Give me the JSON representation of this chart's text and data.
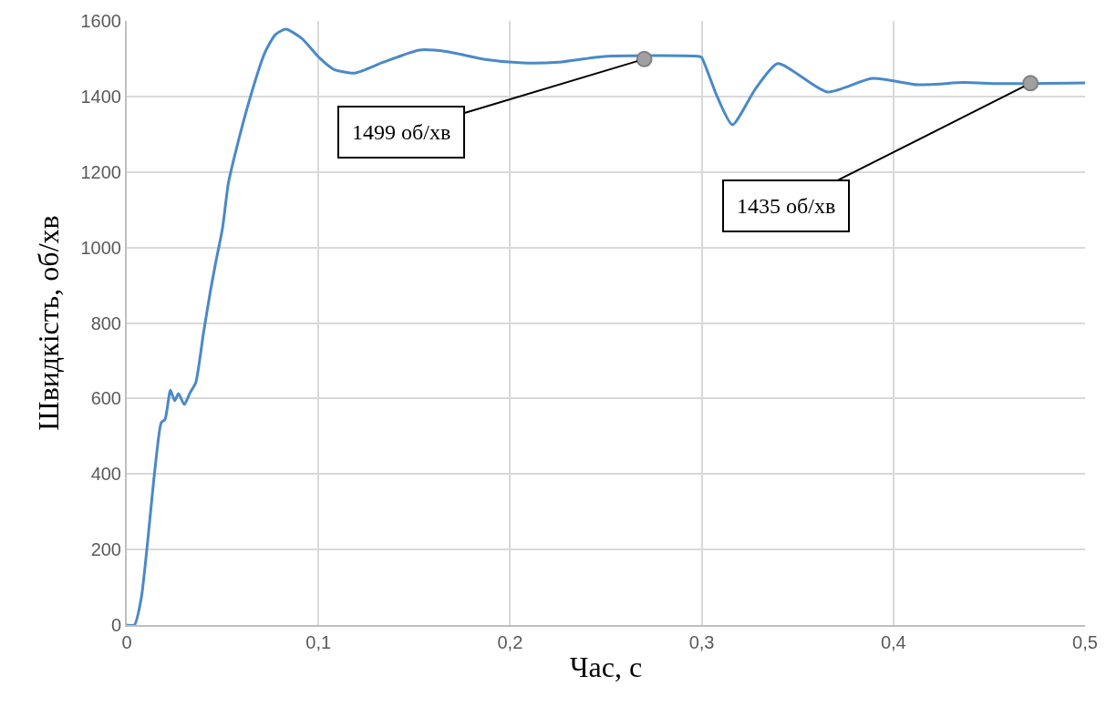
{
  "chart_data": {
    "type": "line",
    "xlabel": "Час, с",
    "ylabel": "Швидкість, об/хв",
    "x": [
      0,
      0.004,
      0.0076,
      0.0148,
      0.018,
      0.02,
      0.0228,
      0.025,
      0.027,
      0.03,
      0.033,
      0.036,
      0.04,
      0.0435,
      0.0466,
      0.05,
      0.053,
      0.057,
      0.0637,
      0.072,
      0.0776,
      0.083,
      0.0913,
      0.1,
      0.108,
      0.119,
      0.134,
      0.1527,
      0.168,
      0.187,
      0.2065,
      0.2255,
      0.249,
      0.2988,
      0.3,
      0.308,
      0.316,
      0.328,
      0.3397,
      0.3654,
      0.389,
      0.413,
      0.4367,
      0.455,
      0.5
    ],
    "series": [
      {
        "color": "#4a89c8",
        "values": [
          0,
          0,
          72,
          417,
          536,
          545,
          622,
          594,
          613,
          584,
          615,
          642,
          772,
          880,
          965,
          1052,
          1170,
          1257,
          1385,
          1515,
          1564,
          1578,
          1554,
          1505,
          1472,
          1462,
          1491,
          1523,
          1518,
          1498,
          1489,
          1491,
          1506,
          1506,
          1503,
          1400,
          1325,
          1420,
          1487,
          1412,
          1448,
          1431,
          1437,
          1434,
          1436
        ]
      }
    ],
    "xlim": [
      0,
      0.5
    ],
    "xticks": [
      0,
      {
        "value": 0.1,
        "label": "0,1"
      },
      {
        "value": 0.2,
        "label": "0,2"
      },
      {
        "value": 0.3,
        "label": "0,3"
      },
      {
        "value": 0.4,
        "label": "0,4"
      },
      {
        "value": 0.5,
        "label": "0,5"
      }
    ],
    "ylim": [
      0,
      1600
    ],
    "yticks": [
      0,
      200,
      400,
      600,
      800,
      1000,
      1200,
      1400,
      1600
    ],
    "grid": true,
    "line_style": "solid",
    "annotations": [
      {
        "text": "1499 об/хв",
        "x": 0.27,
        "y": 1499
      },
      {
        "text": "1435 об/хв",
        "x": 0.4715,
        "y": 1435
      }
    ]
  }
}
